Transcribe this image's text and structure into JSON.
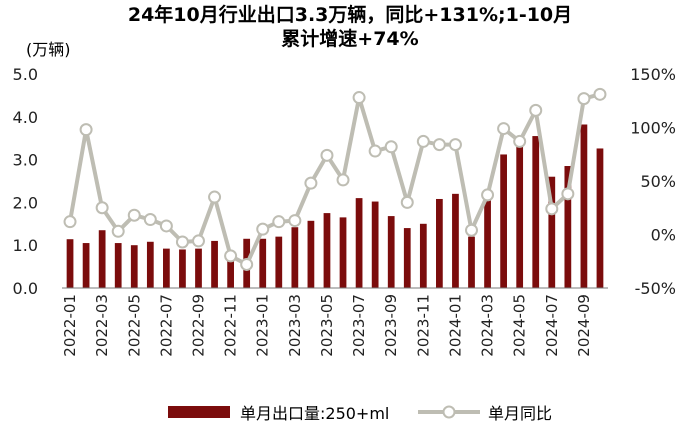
{
  "chart_data": {
    "type": "bar+line",
    "title_line1": "24年10月行业出口3.3万辆，同比+131%;1-10月",
    "title_line2": "累计增速+74%",
    "y_left_unit": "(万辆)",
    "y_left_ticks": [
      "0.0",
      "1.0",
      "2.0",
      "3.0",
      "4.0",
      "5.0"
    ],
    "y_left_range": [
      0,
      5
    ],
    "y_right_ticks": [
      "-50%",
      "0%",
      "50%",
      "100%",
      "150%"
    ],
    "y_right_range": [
      -50,
      150
    ],
    "x_tick_labels": [
      "2022-01",
      "2022-03",
      "2022-05",
      "2022-07",
      "2022-09",
      "2022-11",
      "2023-01",
      "2023-03",
      "2023-05",
      "2023-07",
      "2023-09",
      "2023-11",
      "2024-01",
      "2024-03",
      "2024-05",
      "2024-07",
      "2024-09"
    ],
    "categories": [
      "2022-01",
      "2022-02",
      "2022-03",
      "2022-04",
      "2022-05",
      "2022-06",
      "2022-07",
      "2022-08",
      "2022-09",
      "2022-10",
      "2022-11",
      "2022-12",
      "2023-01",
      "2023-02",
      "2023-03",
      "2023-04",
      "2023-05",
      "2023-06",
      "2023-07",
      "2023-08",
      "2023-09",
      "2023-10",
      "2023-11",
      "2023-12",
      "2024-01",
      "2024-02",
      "2024-03",
      "2024-04",
      "2024-05",
      "2024-06",
      "2024-07",
      "2024-08",
      "2024-09",
      "2024-10"
    ],
    "series": [
      {
        "name": "单月出口量:250+ml",
        "type": "bar",
        "axis": "left",
        "color": "#7B0C0C",
        "values": [
          1.14,
          1.05,
          1.35,
          1.05,
          1.0,
          1.08,
          0.92,
          0.9,
          0.92,
          1.1,
          0.7,
          1.15,
          1.15,
          1.2,
          1.42,
          1.57,
          1.75,
          1.65,
          2.1,
          2.02,
          1.68,
          1.4,
          1.5,
          2.08,
          2.2,
          1.2,
          2.05,
          3.12,
          3.3,
          3.55,
          2.6,
          2.85,
          3.82,
          3.26
        ]
      },
      {
        "name": "单月同比",
        "type": "line",
        "axis": "right",
        "color": "#BEBDB3",
        "values": [
          12,
          98,
          25,
          3,
          18,
          14,
          8,
          -7,
          -6,
          35,
          -20,
          -28,
          5,
          12,
          13,
          48,
          74,
          51,
          128,
          78,
          82,
          30,
          87,
          84,
          84,
          4,
          37,
          99,
          87,
          116,
          24,
          38,
          127,
          131
        ]
      }
    ],
    "legend": [
      "单月出口量:250+ml",
      "单月同比"
    ]
  }
}
